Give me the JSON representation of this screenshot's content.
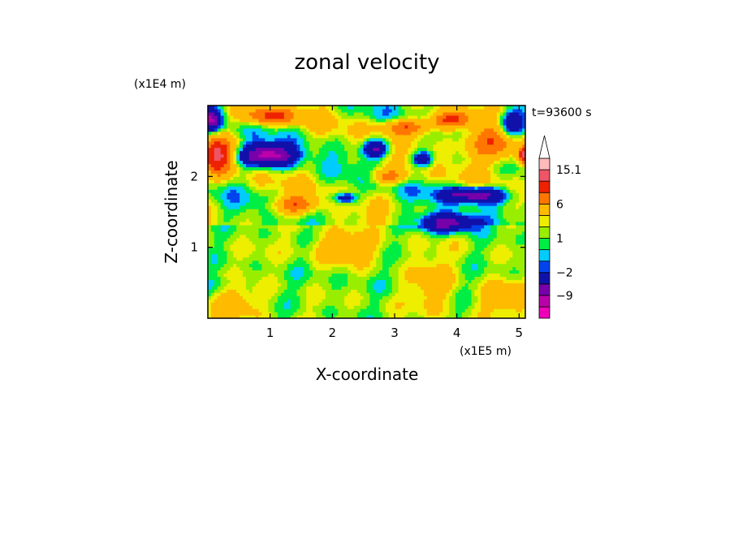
{
  "chart_data": {
    "type": "heatmap",
    "title": "zonal velocity",
    "xlabel": "X-coordinate",
    "ylabel": "Z-coordinate",
    "x_unit": "(x1E5 m)",
    "y_unit": "(x1E4 m)",
    "time_label": "t=93600 s",
    "xlim": [
      0,
      5.1
    ],
    "ylim": [
      0,
      3.0
    ],
    "xticks": [
      1,
      2,
      3,
      4,
      5
    ],
    "yticks": [
      1,
      2
    ],
    "colorbar": {
      "levels": [
        -15,
        -12,
        -9,
        -6,
        -2,
        -1,
        0,
        1,
        2,
        3,
        6,
        9,
        12,
        15.1
      ],
      "colors": [
        "#ee00bb",
        "#bb00aa",
        "#7700aa",
        "#1111aa",
        "#0044ee",
        "#00ccff",
        "#00ee44",
        "#99ee00",
        "#eeee00",
        "#ffbb00",
        "#ff7700",
        "#ee2200",
        "#ee5566",
        "#ffbbbb"
      ],
      "overflow_color": "#ffffff",
      "tick_labels": [
        {
          "value": 15.1,
          "text": "15.1"
        },
        {
          "value": 6,
          "text": "6"
        },
        {
          "value": 1,
          "text": "1"
        },
        {
          "value": -2,
          "text": "−2"
        },
        {
          "value": -9,
          "text": "−9"
        }
      ]
    },
    "field_description": "Zonal velocity contour field: layered bands, positive (orange/red) jets near Z=2.2-2.9, negative (blue) bands near Z=1.4-2.4, weak positive (yellow/green) values below Z=1.2",
    "features": [
      {
        "x": 0.95,
        "z": 2.3,
        "amp": -12,
        "sx": 0.45,
        "sz": 0.15
      },
      {
        "x": 2.7,
        "z": 2.4,
        "amp": -8,
        "sx": 0.2,
        "sz": 0.12
      },
      {
        "x": 2.2,
        "z": 1.7,
        "amp": -7,
        "sx": 0.2,
        "sz": 0.08
      },
      {
        "x": 3.45,
        "z": 2.25,
        "amp": -7,
        "sx": 0.15,
        "sz": 0.1
      },
      {
        "x": 3.85,
        "z": 1.35,
        "amp": -9,
        "sx": 0.45,
        "sz": 0.13
      },
      {
        "x": 4.3,
        "z": 1.75,
        "amp": -10,
        "sx": 0.5,
        "sz": 0.11
      },
      {
        "x": 4.9,
        "z": 2.75,
        "amp": -10,
        "sx": 0.25,
        "sz": 0.2
      },
      {
        "x": 0.05,
        "z": 2.8,
        "amp": -9,
        "sx": 0.15,
        "sz": 0.15
      },
      {
        "x": 4.6,
        "z": 2.5,
        "amp": 8,
        "sx": 0.5,
        "sz": 0.25
      },
      {
        "x": 0.15,
        "z": 2.3,
        "amp": 10,
        "sx": 0.25,
        "sz": 0.25
      },
      {
        "x": 1.0,
        "z": 2.85,
        "amp": 8,
        "sx": 0.45,
        "sz": 0.12
      },
      {
        "x": 3.9,
        "z": 2.8,
        "amp": 9,
        "sx": 0.35,
        "sz": 0.12
      },
      {
        "x": 5.1,
        "z": 2.3,
        "amp": 12,
        "sx": 0.1,
        "sz": 0.12
      },
      {
        "x": 1.4,
        "z": 1.6,
        "amp": 7,
        "sx": 0.35,
        "sz": 0.12
      },
      {
        "x": 2.9,
        "z": 2.0,
        "amp": 6,
        "sx": 0.3,
        "sz": 0.1
      },
      {
        "x": 2.2,
        "z": 1.0,
        "amp": 4,
        "sx": 0.5,
        "sz": 0.2
      },
      {
        "x": 3.2,
        "z": 2.7,
        "amp": 7,
        "sx": 0.4,
        "sz": 0.1
      },
      {
        "x": 3.6,
        "z": 0.5,
        "amp": 3,
        "sx": 0.3,
        "sz": 0.35
      },
      {
        "x": 4.8,
        "z": 0.3,
        "amp": 4,
        "sx": 0.4,
        "sz": 0.2
      },
      {
        "x": 0.4,
        "z": 0.2,
        "amp": 3,
        "sx": 0.4,
        "sz": 0.2
      },
      {
        "x": 2.0,
        "z": 0.5,
        "amp": -0.5,
        "sx": 0.6,
        "sz": 0.3
      },
      {
        "x": 0.2,
        "z": 0.5,
        "amp": -1.5,
        "sx": 0.3,
        "sz": 0.1
      }
    ]
  }
}
